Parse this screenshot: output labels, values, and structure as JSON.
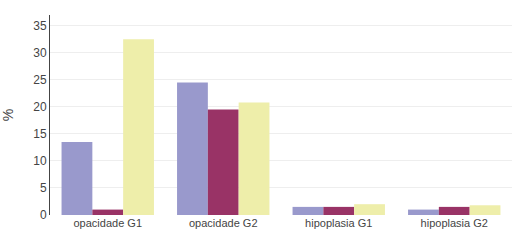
{
  "chart_data": {
    "type": "bar",
    "categories": [
      "opacidade G1",
      "opacidade G2",
      "hipoplasia G1",
      "hipoplasia G2"
    ],
    "series": [
      {
        "color": "#9999CC",
        "values": [
          13.5,
          24.5,
          1.5,
          1.0
        ]
      },
      {
        "color": "#993366",
        "values": [
          1.0,
          19.5,
          1.5,
          1.5
        ]
      },
      {
        "color": "#EEEEAA",
        "values": [
          32.5,
          20.8,
          2.0,
          1.8
        ]
      }
    ],
    "ylabel": "%",
    "ylim": [
      0,
      37
    ],
    "yticks": [
      0,
      5,
      10,
      15,
      20,
      25,
      30,
      35
    ],
    "grid": true
  }
}
